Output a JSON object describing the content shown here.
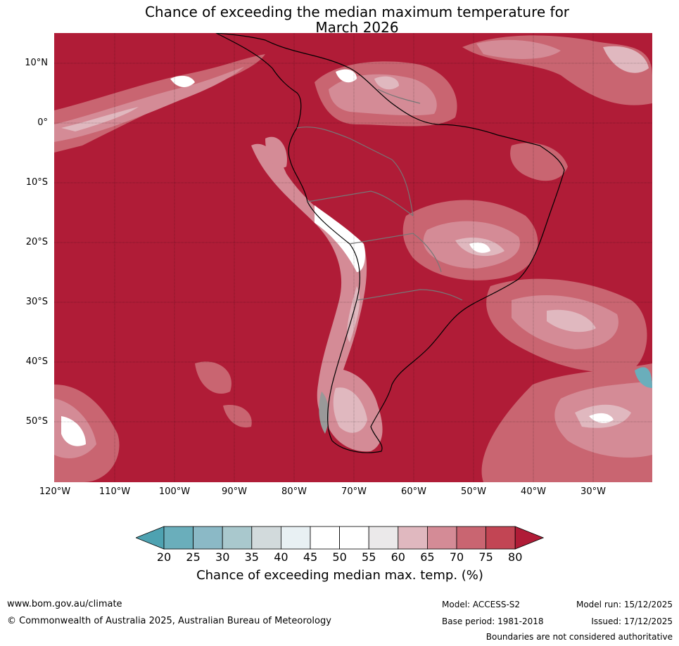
{
  "title_line1": "Chance of exceeding the median maximum temperature for",
  "title_line2": "March 2026",
  "lat_labels": [
    "10°N",
    "0°",
    "10°S",
    "20°S",
    "30°S",
    "40°S",
    "50°S"
  ],
  "lon_labels": [
    "120°W",
    "110°W",
    "100°W",
    "90°W",
    "80°W",
    "70°W",
    "60°W",
    "50°W",
    "40°W",
    "30°W"
  ],
  "colorbar": {
    "ticks": [
      "20",
      "25",
      "30",
      "35",
      "40",
      "45",
      "50",
      "55",
      "60",
      "65",
      "70",
      "75",
      "80"
    ],
    "label": "Chance of exceeding median max. temp. (%)",
    "colors": [
      "#4ea2b1",
      "#6aaebb",
      "#8bb9c6",
      "#a9c8cd",
      "#d2dadc",
      "#e8f0f3",
      "#ffffff",
      "#ffffff",
      "#ebe9ea",
      "#e0b8bf",
      "#d48b96",
      "#c96571",
      "#c24554",
      "#b01c37"
    ]
  },
  "footer": {
    "website": "www.bom.gov.au/climate",
    "copyright": "© Commonwealth of Australia 2025, Australian Bureau of Meteorology",
    "model": "Model: ACCESS-S2",
    "base_period": "Base period: 1981-2018",
    "model_run": "Model run: 15/12/2025",
    "issued": "Issued: 17/12/2025",
    "disclaimer": "Boundaries are not considered authoritative"
  }
}
